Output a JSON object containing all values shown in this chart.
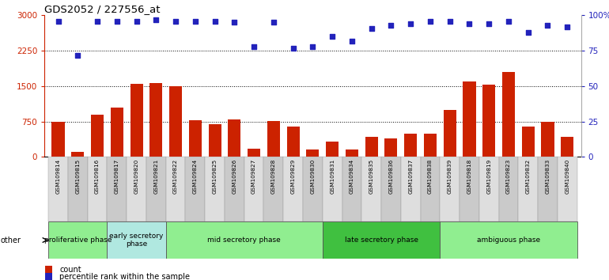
{
  "title": "GDS2052 / 227556_at",
  "samples": [
    "GSM109814",
    "GSM109815",
    "GSM109816",
    "GSM109817",
    "GSM109820",
    "GSM109821",
    "GSM109822",
    "GSM109824",
    "GSM109825",
    "GSM109826",
    "GSM109827",
    "GSM109828",
    "GSM109829",
    "GSM109830",
    "GSM109831",
    "GSM109834",
    "GSM109835",
    "GSM109836",
    "GSM109837",
    "GSM109838",
    "GSM109839",
    "GSM109818",
    "GSM109819",
    "GSM109823",
    "GSM109832",
    "GSM109833",
    "GSM109840"
  ],
  "counts": [
    750,
    100,
    900,
    1050,
    1550,
    1570,
    1500,
    780,
    700,
    800,
    170,
    760,
    650,
    150,
    330,
    160,
    420,
    390,
    490,
    490,
    1000,
    1600,
    1530,
    1800,
    640,
    740,
    430
  ],
  "percentiles": [
    96,
    72,
    96,
    96,
    96,
    97,
    96,
    96,
    96,
    95,
    78,
    95,
    77,
    78,
    85,
    82,
    91,
    93,
    94,
    96,
    96,
    94,
    94,
    96,
    88,
    93,
    92
  ],
  "phases": [
    {
      "label": "proliferative phase",
      "start": 0,
      "end": 3,
      "color": "#90ee90"
    },
    {
      "label": "early secretory\nphase",
      "start": 3,
      "end": 6,
      "color": "#b0e8e0"
    },
    {
      "label": "mid secretory phase",
      "start": 6,
      "end": 14,
      "color": "#90ee90"
    },
    {
      "label": "late secretory phase",
      "start": 14,
      "end": 20,
      "color": "#40c040"
    },
    {
      "label": "ambiguous phase",
      "start": 20,
      "end": 27,
      "color": "#90ee90"
    }
  ],
  "bar_color": "#cc2200",
  "dot_color": "#2222bb",
  "left_ylim": [
    0,
    3000
  ],
  "left_yticks": [
    0,
    750,
    1500,
    2250,
    3000
  ],
  "right_ylim": [
    0,
    100
  ],
  "right_yticks": [
    0,
    25,
    50,
    75,
    100
  ]
}
